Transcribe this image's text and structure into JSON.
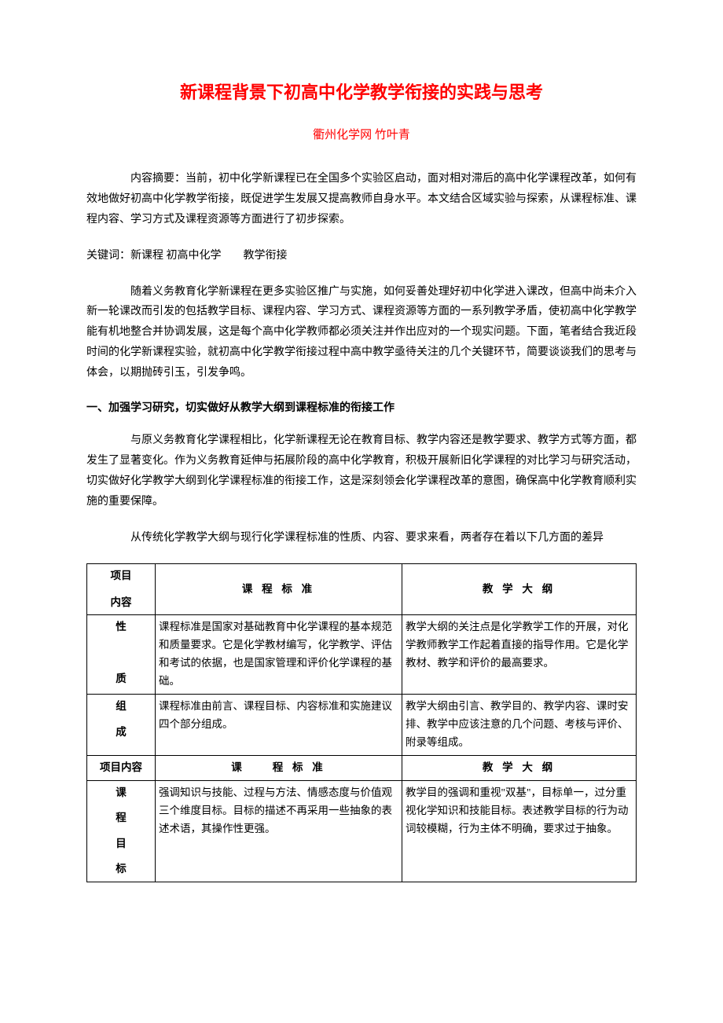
{
  "colors": {
    "title": "#ff0000",
    "text": "#000000",
    "border": "#000000",
    "background": "#ffffff"
  },
  "typography": {
    "title_fontsize": 22,
    "subtitle_fontsize": 15,
    "body_fontsize": 14,
    "table_fontsize": 13.5,
    "line_height": 1.85
  },
  "title": "新课程背景下初高中化学教学衔接的实践与思考",
  "subtitle": "衢州化学网 竹叶青",
  "abstract": "内容摘要：当前，初中化学新课程已在全国多个实验区启动，面对相对滞后的高中化学课程改革，如何有效地做好初高中化学教学衔接，既促进学生发展又提高教师自身水平。本文结合区域实验与探索，从课程标准、课程内容、学习方式及课程资源等方面进行了初步探索。",
  "keywords": "关键词：新课程 初高中化学　　教学衔接",
  "intro": "随着义务教育化学新课程在更多实验区推广与实施，如何妥善处理好初中化学进入课改，但高中尚未介入新一轮课改而引发的包括教学目标、课程内容、学习方式、课程资源等方面的一系列教学矛盾，使初高中化学教学能有机地整合并协调发展，这是每个高中化学教师都必须关注并作出应对的一个现实问题。下面，笔者结合我近段时间的化学新课程实验，就初高中化学教学衔接过程中高中教学亟待关注的几个关键环节，简要谈谈我们的思考与体会，以期抛砖引玉，引发争鸣。",
  "heading1": "一、加强学习研究，切实做好从教学大纲到课程标准的衔接工作",
  "para1": "与原义务教育化学课程相比，化学新课程无论在教育目标、教学内容还是教学要求、教学方式等方面，都发生了显著变化。作为义务教育延伸与拓展阶段的高中化学教育，积极开展新旧化学课程的对比学习与研究活动，切实做好化学教学大纲到化学课程标准的衔接工作，这是深刻领会化学课程改革的意图，确保高中化学教育顺利实施的重要保障。",
  "para2": "从传统化学教学大纲与现行化学课程标准的性质、内容、要求来看，两者存在着以下几方面的差异",
  "table": {
    "header1": {
      "c0a": "项目",
      "c0b": "内容",
      "c1": "课 程 标 准",
      "c2": "教 学 大 纲"
    },
    "row_nature": {
      "label_a": "性",
      "label_b": "质",
      "std": "课程标准是国家对基础教育中化学课程的基本规范和质量要求。它是化学教材编写，化学教学、评估和考试的依据，也是国家管理和评价化学课程的基础。",
      "syl": "教学大纲的关注点是化学教学工作的开展，对化学教师教学工作起着直接的指导作用。它是化学教材、教学和评价的最高要求。"
    },
    "row_compose": {
      "label_a": "组",
      "label_b": "成",
      "std": "课程标准由前言、课程目标、内容标准和实施建议四个部分组成。",
      "syl": "教学大纲由引言、教学目的、教学内容、课时安排、教学中应该注意的几个问题、考核与评价、附录等组成。"
    },
    "header2": {
      "c0": "项目内容",
      "c1": "课　　程 标 准",
      "c2": "教 学 大 纲"
    },
    "row_goal": {
      "label_a": "课",
      "label_b": "程",
      "label_c": "目",
      "label_d": "标",
      "std": "强调知识与技能、过程与方法、情感态度与价值观三个维度目标。目标的描述不再采用一些抽象的表述术语，其操作性更强。",
      "syl": "教学目的强调和重视\"双基\"，目标单一，过分重视化学知识和技能目标。表述教学目标的行为动词较模糊，行为主体不明确，要求过于抽象。"
    }
  }
}
